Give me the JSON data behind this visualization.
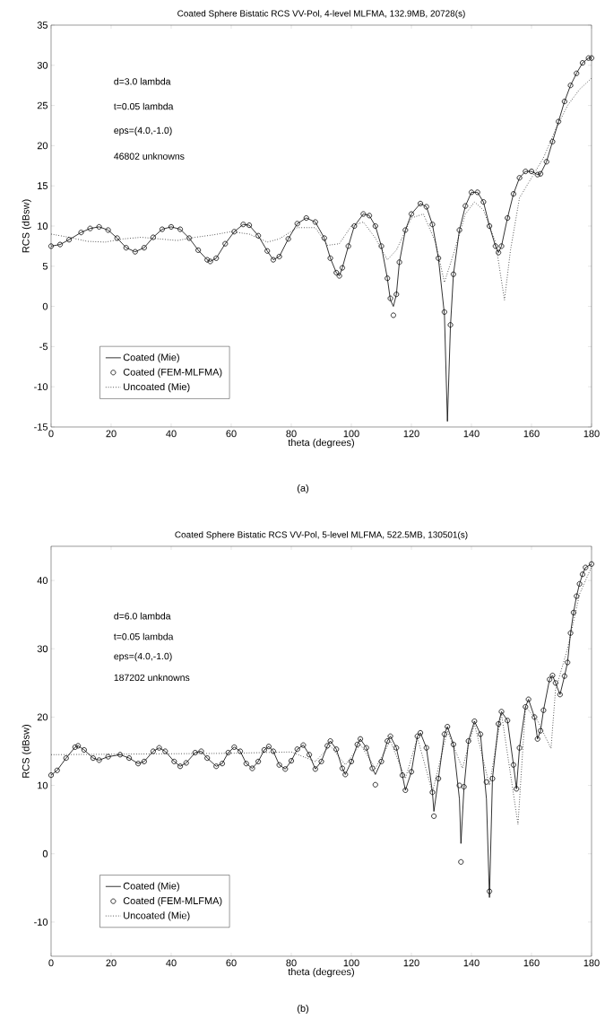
{
  "chart_data": [
    {
      "type": "line",
      "title": "Coated Sphere Bistatic RCS VV-Pol, 4-level MLFMA, 132.9MB, 20728(s)",
      "xlabel": "theta (degrees)",
      "ylabel": "RCS (dBsw)",
      "xlim": [
        0,
        180
      ],
      "xticks": [
        0,
        20,
        40,
        60,
        80,
        100,
        120,
        140,
        160,
        180
      ],
      "ylim": [
        -15,
        35
      ],
      "yticks": [
        -15,
        -10,
        -5,
        0,
        5,
        10,
        15,
        20,
        25,
        30,
        35
      ],
      "legend": "bottom left",
      "annotations": [
        "d=3.0 lambda",
        "t=0.05 lambda",
        "eps=(4.0,-1.0)",
        "46802 unknowns",
        "(a)"
      ],
      "series": [
        {
          "name": "Coated (Mie)",
          "color": "#000000",
          "line_style": "solid",
          "marker": "none",
          "x": [
            0,
            3,
            6,
            10,
            13,
            16,
            19,
            22,
            25,
            28,
            31,
            34,
            37,
            40,
            43,
            46,
            49,
            52,
            53,
            55,
            58,
            61,
            64,
            66,
            69,
            72,
            74,
            76,
            79,
            82,
            85,
            88,
            91,
            93,
            95,
            96,
            97,
            99,
            101,
            104,
            106,
            108,
            110,
            112,
            113,
            114,
            115,
            116,
            118,
            120,
            123,
            125,
            127,
            129,
            131,
            132,
            133,
            134,
            136,
            138,
            140,
            142,
            144,
            146,
            148,
            149,
            150,
            152,
            154,
            156,
            158,
            160,
            162,
            163,
            165,
            167,
            169,
            171,
            173,
            175,
            177,
            179,
            180
          ],
          "values": [
            7.5,
            7.7,
            8.3,
            9.2,
            9.7,
            9.9,
            9.5,
            8.5,
            7.3,
            6.8,
            7.3,
            8.6,
            9.6,
            9.9,
            9.6,
            8.5,
            7.0,
            5.8,
            5.6,
            6.0,
            7.8,
            9.3,
            10.2,
            10.1,
            8.8,
            6.9,
            5.8,
            6.2,
            8.4,
            10.3,
            11.0,
            10.5,
            8.5,
            6.0,
            4.2,
            3.8,
            4.8,
            7.5,
            10.0,
            11.5,
            11.3,
            10.0,
            7.5,
            3.5,
            0.8,
            0.0,
            1.5,
            5.5,
            9.5,
            11.5,
            12.8,
            12.4,
            10.2,
            6.0,
            -1.0,
            -14.3,
            -2.5,
            4.0,
            9.5,
            12.5,
            14.2,
            14.2,
            13.0,
            10.0,
            7.5,
            6.7,
            7.5,
            11.0,
            14.0,
            16.0,
            16.8,
            16.8,
            16.4,
            16.5,
            18.0,
            20.5,
            23.0,
            25.5,
            27.5,
            29.0,
            30.3,
            30.9,
            30.9
          ]
        },
        {
          "name": "Coated (FEM-MLFMA)",
          "type": "scatter",
          "color": "#000000",
          "marker": "circle",
          "x": [
            0,
            3,
            6,
            10,
            13,
            16,
            19,
            22,
            25,
            28,
            31,
            34,
            37,
            40,
            43,
            46,
            49,
            52,
            53,
            55,
            58,
            61,
            64,
            66,
            69,
            72,
            74,
            76,
            79,
            82,
            85,
            88,
            91,
            93,
            95,
            96,
            97,
            99,
            101,
            104,
            106,
            108,
            110,
            112,
            113,
            114,
            115,
            116,
            118,
            120,
            123,
            125,
            127,
            129,
            131,
            133,
            134,
            136,
            138,
            140,
            142,
            144,
            146,
            148,
            149,
            150,
            152,
            154,
            156,
            158,
            160,
            162,
            163,
            165,
            167,
            169,
            171,
            173,
            175,
            177,
            179,
            180
          ],
          "values": [
            7.5,
            7.7,
            8.3,
            9.2,
            9.7,
            9.9,
            9.5,
            8.5,
            7.3,
            6.8,
            7.3,
            8.6,
            9.6,
            9.9,
            9.6,
            8.5,
            7.0,
            5.8,
            5.6,
            6.0,
            7.8,
            9.3,
            10.2,
            10.1,
            8.8,
            6.9,
            5.8,
            6.2,
            8.4,
            10.3,
            11.0,
            10.5,
            8.5,
            6.0,
            4.2,
            3.8,
            4.8,
            7.5,
            10.0,
            11.5,
            11.3,
            10.0,
            7.5,
            3.5,
            1.0,
            -1.1,
            1.5,
            5.5,
            9.5,
            11.5,
            12.8,
            12.4,
            10.2,
            6.0,
            -0.7,
            -2.3,
            4.0,
            9.5,
            12.5,
            14.2,
            14.2,
            13.0,
            10.0,
            7.5,
            6.7,
            7.5,
            11.0,
            14.0,
            16.0,
            16.8,
            16.8,
            16.4,
            16.5,
            18.0,
            20.5,
            23.0,
            25.5,
            27.5,
            29.0,
            30.3,
            30.9,
            30.9
          ]
        },
        {
          "name": "Uncoated (Mie)",
          "color": "#000000",
          "line_style": "dotted",
          "marker": "none",
          "x": [
            0,
            6,
            12,
            18,
            24,
            30,
            36,
            42,
            48,
            54,
            60,
            66,
            72,
            76,
            82,
            88,
            92,
            96,
            100,
            104,
            108,
            112,
            115,
            120,
            124,
            128,
            131,
            134,
            138,
            141,
            144,
            148,
            151,
            153,
            156,
            160,
            164,
            168,
            172,
            176,
            180
          ],
          "values": [
            9.0,
            8.6,
            8.1,
            8.0,
            8.4,
            8.6,
            8.4,
            8.2,
            8.6,
            8.9,
            9.3,
            9.0,
            8.0,
            8.4,
            9.8,
            9.8,
            7.6,
            7.8,
            10.0,
            10.5,
            8.5,
            5.8,
            7.0,
            11.0,
            11.5,
            8.0,
            3.0,
            6.5,
            11.5,
            13.0,
            12.0,
            8.0,
            0.8,
            7.0,
            13.5,
            16.0,
            18.5,
            22.0,
            25.0,
            27.0,
            28.4
          ]
        }
      ]
    },
    {
      "type": "line",
      "title": "Coated Sphere Bistatic RCS VV-Pol, 5-level MLFMA, 522.5MB, 130501(s)",
      "xlabel": "theta (degrees)",
      "ylabel": "RCS (dBsw)",
      "xlim": [
        0,
        180
      ],
      "xticks": [
        0,
        20,
        40,
        60,
        80,
        100,
        120,
        140,
        160,
        180
      ],
      "ylim": [
        -15,
        45
      ],
      "yticks": [
        -10,
        0,
        10,
        20,
        30,
        40
      ],
      "legend": "bottom left",
      "annotations": [
        "d=6.0 lambda",
        "t=0.05 lambda",
        "eps=(4.0,-1.0)",
        "187202 unknowns",
        "(b)"
      ],
      "series": [
        {
          "name": "Coated (Mie)",
          "color": "#000000",
          "line_style": "solid",
          "marker": "none",
          "x": [
            0,
            2,
            5,
            8,
            9,
            11,
            14,
            16,
            19,
            23,
            26,
            29,
            31,
            34,
            36,
            38,
            41,
            43,
            45,
            48,
            50,
            52,
            55,
            57,
            59,
            61,
            63,
            65,
            67,
            69,
            71,
            72.5,
            74,
            76,
            78,
            80,
            82,
            84,
            86,
            88,
            90,
            92,
            93,
            95,
            97,
            98,
            100,
            102,
            103,
            105,
            107,
            108,
            110,
            112,
            113,
            115,
            117,
            118,
            120,
            122,
            123,
            125,
            127,
            127.5,
            129,
            131,
            132,
            134,
            136,
            136.5,
            137.5,
            139,
            141,
            143,
            145,
            146,
            147,
            149,
            150,
            152,
            154,
            155,
            156,
            158,
            159,
            161,
            162,
            163,
            164,
            166,
            167,
            168,
            169.5,
            171,
            172,
            173,
            174,
            175,
            176,
            177,
            178,
            180
          ],
          "values": [
            11.5,
            12.2,
            14.0,
            15.6,
            15.8,
            15.2,
            14.0,
            13.7,
            14.2,
            14.5,
            14.0,
            13.2,
            13.5,
            15.0,
            15.5,
            15.0,
            13.5,
            12.8,
            13.3,
            14.8,
            15.0,
            14.0,
            12.8,
            13.2,
            14.8,
            15.6,
            15.0,
            13.2,
            12.5,
            13.5,
            15.2,
            15.7,
            15.0,
            13.0,
            12.4,
            13.6,
            15.3,
            15.9,
            14.5,
            12.4,
            13.5,
            15.8,
            16.5,
            15.3,
            12.5,
            11.6,
            13.5,
            16.0,
            16.8,
            15.5,
            12.5,
            11.6,
            13.5,
            16.5,
            17.2,
            15.5,
            11.5,
            9.3,
            12.0,
            17.2,
            17.7,
            15.5,
            9.0,
            6.2,
            11.0,
            17.5,
            18.6,
            16.0,
            8.0,
            1.5,
            9.5,
            16.5,
            19.4,
            17.5,
            8.0,
            -6.4,
            11.0,
            19.0,
            20.8,
            19.5,
            13.0,
            9.5,
            15.5,
            21.5,
            22.6,
            20.0,
            16.8,
            18.0,
            21.0,
            25.5,
            26.1,
            25.0,
            23.3,
            26.0,
            28.0,
            32.3,
            35.3,
            37.7,
            39.5,
            40.9,
            41.9,
            42.4
          ]
        },
        {
          "name": "Coated (FEM-MLFMA)",
          "type": "scatter",
          "color": "#000000",
          "marker": "circle",
          "x": [
            0,
            2,
            5,
            8,
            9,
            11,
            14,
            16,
            19,
            23,
            26,
            29,
            31,
            34,
            36,
            38,
            41,
            43,
            45,
            48,
            50,
            52,
            55,
            57,
            59,
            61,
            63,
            65,
            67,
            69,
            71,
            72.5,
            74,
            76,
            78,
            80,
            82,
            84,
            86,
            88,
            90,
            92,
            93,
            95,
            97,
            98,
            100,
            102,
            103,
            105,
            107,
            108,
            110,
            112,
            113,
            115,
            117,
            118,
            120,
            122,
            123,
            125,
            127,
            127.5,
            129,
            131,
            132,
            134,
            136,
            136.5,
            137.5,
            139,
            141,
            143,
            145,
            146,
            147,
            149,
            150,
            152,
            154,
            155,
            156,
            158,
            159,
            161,
            162,
            163,
            164,
            166,
            167,
            168,
            169.5,
            171,
            172,
            173,
            174,
            175,
            176,
            177,
            178,
            180
          ],
          "values": [
            11.5,
            12.2,
            14.0,
            15.6,
            15.8,
            15.2,
            14.0,
            13.7,
            14.2,
            14.5,
            14.0,
            13.2,
            13.5,
            15.0,
            15.5,
            15.0,
            13.5,
            12.8,
            13.3,
            14.8,
            15.0,
            14.0,
            12.8,
            13.2,
            14.8,
            15.6,
            15.0,
            13.2,
            12.5,
            13.5,
            15.2,
            15.7,
            15.0,
            13.0,
            12.4,
            13.6,
            15.3,
            15.9,
            14.5,
            12.4,
            13.5,
            15.8,
            16.5,
            15.3,
            12.5,
            11.6,
            13.5,
            16.0,
            16.8,
            15.5,
            12.5,
            10.1,
            13.5,
            16.5,
            17.2,
            15.5,
            11.5,
            9.3,
            12.0,
            17.2,
            17.7,
            15.5,
            9.0,
            5.5,
            11.0,
            17.5,
            18.6,
            16.0,
            10.0,
            -1.2,
            9.8,
            16.5,
            19.4,
            17.5,
            10.5,
            -5.5,
            11.0,
            19.0,
            20.8,
            19.5,
            13.0,
            9.5,
            15.5,
            21.5,
            22.6,
            20.0,
            16.8,
            18.0,
            21.0,
            25.5,
            26.1,
            25.0,
            23.3,
            26.0,
            28.0,
            32.3,
            35.3,
            37.7,
            39.5,
            40.9,
            41.9,
            42.4
          ]
        },
        {
          "name": "Uncoated (Mie)",
          "color": "#000000",
          "line_style": "dotted",
          "marker": "none",
          "x": [
            0,
            30,
            60,
            80,
            88,
            93,
            98,
            103,
            108,
            113,
            118,
            122,
            127,
            132,
            137,
            141,
            146,
            150,
            155.5,
            158,
            162,
            166.5,
            168,
            172,
            176,
            180
          ],
          "values": [
            14.5,
            14.6,
            14.7,
            14.9,
            13.5,
            15.8,
            13.0,
            16.0,
            12.5,
            16.5,
            11.0,
            17.0,
            9.0,
            18.0,
            12.5,
            19.0,
            10.0,
            20.5,
            4.3,
            21.5,
            19.5,
            15.4,
            24.0,
            30.0,
            38.0,
            42.0
          ]
        }
      ]
    }
  ]
}
